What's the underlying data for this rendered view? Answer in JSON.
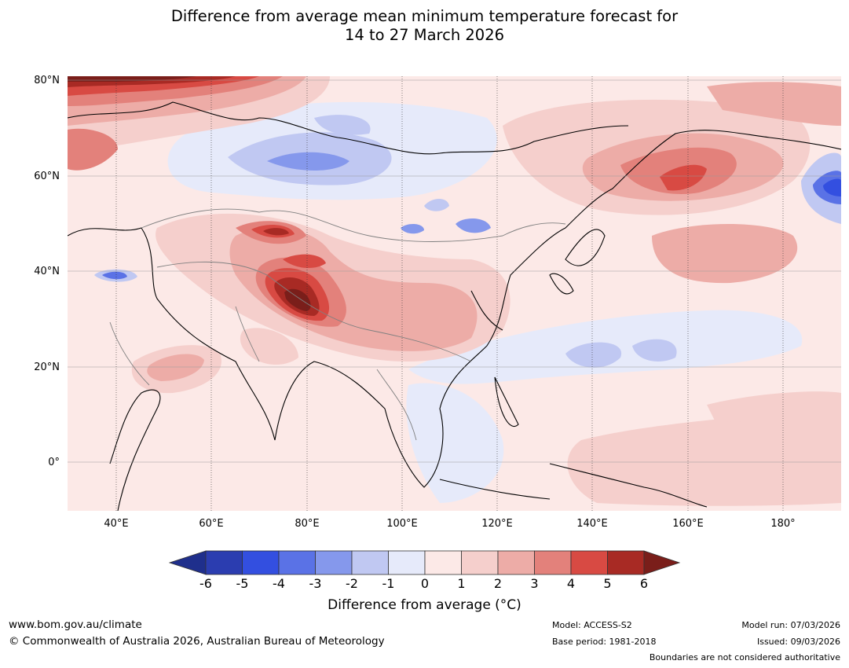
{
  "title": {
    "line1": "Difference from average mean minimum temperature forecast for",
    "line2": "14 to 27 March 2026"
  },
  "map": {
    "region": "Asia and western Pacific",
    "lat_labels": [
      "80°N",
      "60°N",
      "40°N",
      "20°N",
      "0°"
    ],
    "lon_labels": [
      "40°E",
      "60°E",
      "80°E",
      "100°E",
      "120°E",
      "140°E",
      "160°E",
      "180°"
    ]
  },
  "colorbar": {
    "ticks": [
      "-6",
      "-5",
      "-4",
      "-3",
      "-2",
      "-1",
      "0",
      "1",
      "2",
      "3",
      "4",
      "5",
      "6"
    ],
    "colors": [
      "#1f2f8c",
      "#2b3db0",
      "#334fe0",
      "#5a72e6",
      "#8598ec",
      "#c0c8f2",
      "#e6eafa",
      "#fce9e7",
      "#f5cfcc",
      "#edaca7",
      "#e3817b",
      "#d84a43",
      "#a82a24",
      "#7a1e1a"
    ],
    "label": "Difference from average (°C)"
  },
  "footer": {
    "website": "www.bom.gov.au/climate",
    "copyright": "© Commonwealth of Australia 2026, Australian Bureau of Meteorology",
    "model": "Model: ACCESS-S2",
    "base_period": "Base period: 1981-2018",
    "model_run": "Model run: 07/03/2026",
    "issued": "Issued: 09/03/2026",
    "boundaries_note": "Boundaries are not considered authoritative"
  }
}
